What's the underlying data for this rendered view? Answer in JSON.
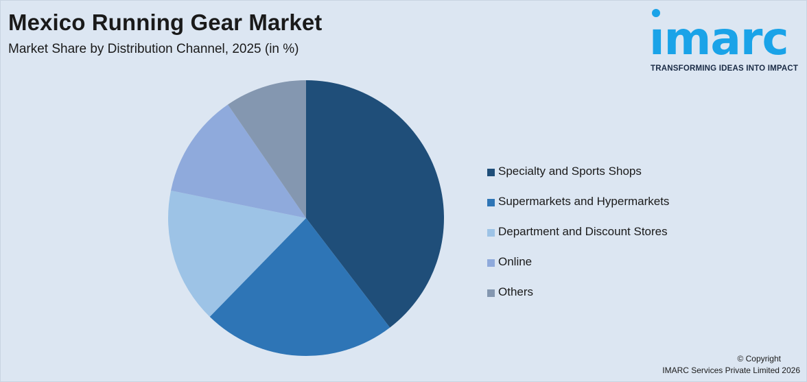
{
  "header": {
    "title": "Mexico Running Gear Market",
    "subtitle": "Market Share by Distribution Channel, 2025 (in %)"
  },
  "logo": {
    "word": "ımarc",
    "tagline": "TRANSFORMING IDEAS INTO IMPACT",
    "color": "#1aa3e8"
  },
  "chart_data": {
    "type": "pie",
    "title": "Mexico Running Gear Market",
    "subtitle": "Market Share by Distribution Channel, 2025 (in %)",
    "legend_position": "right",
    "start": "12 o'clock",
    "direction": "clockwise",
    "slices": [
      {
        "label": "Specialty and Sports Shops",
        "value": 39.6,
        "color": "#1f4e79"
      },
      {
        "label": "Supermarkets and Hypermarkets",
        "value": 22.7,
        "color": "#2e75b6"
      },
      {
        "label": "Department and Discount Stores",
        "value": 15.9,
        "color": "#9dc3e6"
      },
      {
        "label": "Online",
        "value": 12.2,
        "color": "#8faadc"
      },
      {
        "label": "Others",
        "value": 9.6,
        "color": "#8497b0"
      }
    ]
  },
  "footer": {
    "copyright_line1": "© Copyright",
    "copyright_line2": "IMARC Services Private Limited 2026"
  }
}
